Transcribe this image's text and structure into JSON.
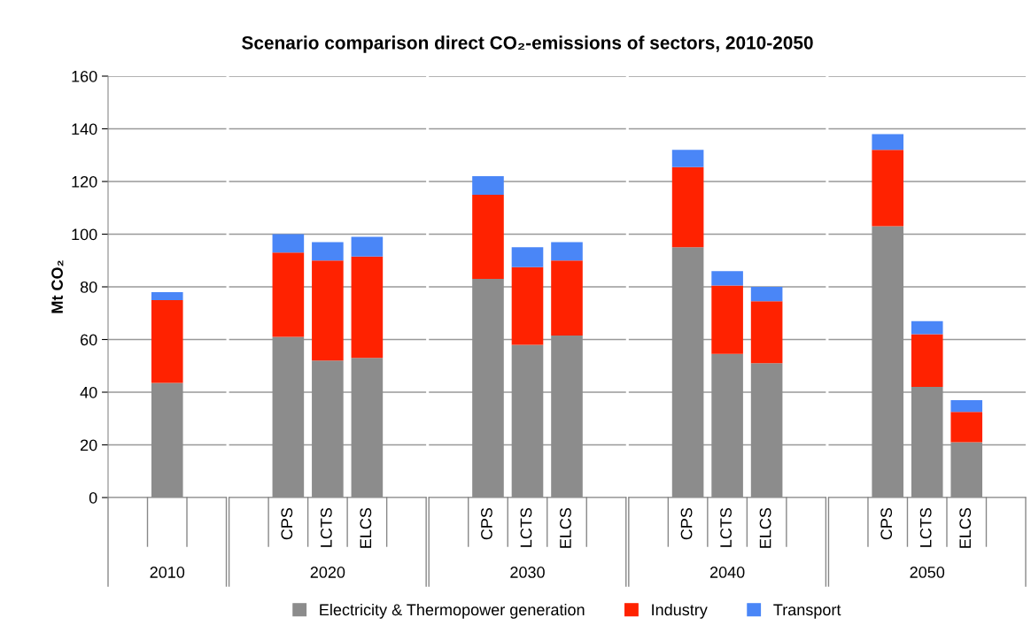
{
  "chart_data": [
    {
      "type": "bar",
      "stacked": true,
      "ylabel": "Mt CO₂",
      "xlabel": "2010",
      "categories": [
        null,
        null,
        null
      ],
      "series": [
        {
          "name": "Electricity & Thermopower generation",
          "color": "#8c8c8c",
          "values": [
            null,
            43.5,
            null
          ]
        },
        {
          "name": "Industry",
          "color": "#ff2200",
          "values": [
            null,
            31.5,
            null
          ]
        },
        {
          "name": "Transport",
          "color": "#4a86f7",
          "values": [
            null,
            3,
            null
          ]
        }
      ],
      "ylim": [
        0,
        160
      ],
      "yticks": [
        0,
        20,
        40,
        60,
        80,
        100,
        120,
        140,
        160
      ],
      "grid": "y",
      "legend": "bottom"
    },
    {
      "type": "bar",
      "stacked": true,
      "xlabel": "2020",
      "categories": [
        null,
        "CPS",
        "LCTS",
        "ELCS",
        null
      ],
      "series": [
        {
          "color": "#8c8c8c",
          "values": [
            null,
            61,
            52,
            53,
            null
          ]
        },
        {
          "color": "#ff2200",
          "values": [
            null,
            32,
            38,
            38.5,
            null
          ]
        },
        {
          "color": "#4a86f7",
          "values": [
            null,
            7,
            7,
            7.5,
            null
          ]
        }
      ],
      "ylim": [
        0,
        160
      ],
      "yticks": [
        0,
        20,
        40,
        60,
        80,
        100,
        120,
        140,
        160
      ],
      "grid": "y",
      "tick_labels": "x"
    },
    {
      "type": "bar",
      "stacked": true,
      "title": "Scenario comparison direct CO₂-emissions of sectors, 2010-2050",
      "xlabel": "2030",
      "categories": [
        null,
        "CPS",
        "LCTS",
        "ELCS",
        null
      ],
      "series": [
        {
          "color": "#8c8c8c",
          "values": [
            null,
            83,
            58,
            61.5,
            null
          ]
        },
        {
          "color": "#ff2200",
          "values": [
            null,
            32,
            29.5,
            28.5,
            null
          ]
        },
        {
          "color": "#4a86f7",
          "values": [
            null,
            7,
            7.5,
            7,
            null
          ]
        }
      ],
      "ylim": [
        0,
        160
      ],
      "yticks": [
        0,
        20,
        40,
        60,
        80,
        100,
        120,
        140,
        160
      ],
      "grid": "y",
      "tick_labels": "x"
    },
    {
      "type": "bar",
      "stacked": true,
      "xlabel": "2040",
      "categories": [
        null,
        "CPS",
        "LCTS",
        "ELCS",
        null
      ],
      "series": [
        {
          "color": "#8c8c8c",
          "values": [
            null,
            95,
            54.5,
            51,
            null
          ]
        },
        {
          "color": "#ff2200",
          "values": [
            null,
            30.5,
            26,
            23.5,
            null
          ]
        },
        {
          "color": "#4a86f7",
          "values": [
            null,
            6.5,
            5.5,
            5.5,
            null
          ]
        }
      ],
      "ylim": [
        0,
        160
      ],
      "yticks": [
        0,
        20,
        40,
        60,
        80,
        100,
        120,
        140,
        160
      ],
      "grid": "y",
      "tick_labels": "x"
    },
    {
      "type": "bar",
      "stacked": true,
      "xlabel": "2050",
      "categories": [
        null,
        "CPS",
        "LCTS",
        "ELCS",
        null
      ],
      "series": [
        {
          "color": "#8c8c8c",
          "values": [
            null,
            103,
            42,
            21,
            null
          ]
        },
        {
          "color": "#ff2200",
          "values": [
            null,
            29,
            20,
            11.5,
            null
          ]
        },
        {
          "color": "#4a86f7",
          "values": [
            null,
            6,
            5,
            4.5,
            null
          ]
        }
      ],
      "ylim": [
        0,
        160
      ],
      "yticks": [
        0,
        20,
        40,
        60,
        80,
        100,
        120,
        140,
        160
      ],
      "grid": "y",
      "tick_labels": "x"
    }
  ]
}
